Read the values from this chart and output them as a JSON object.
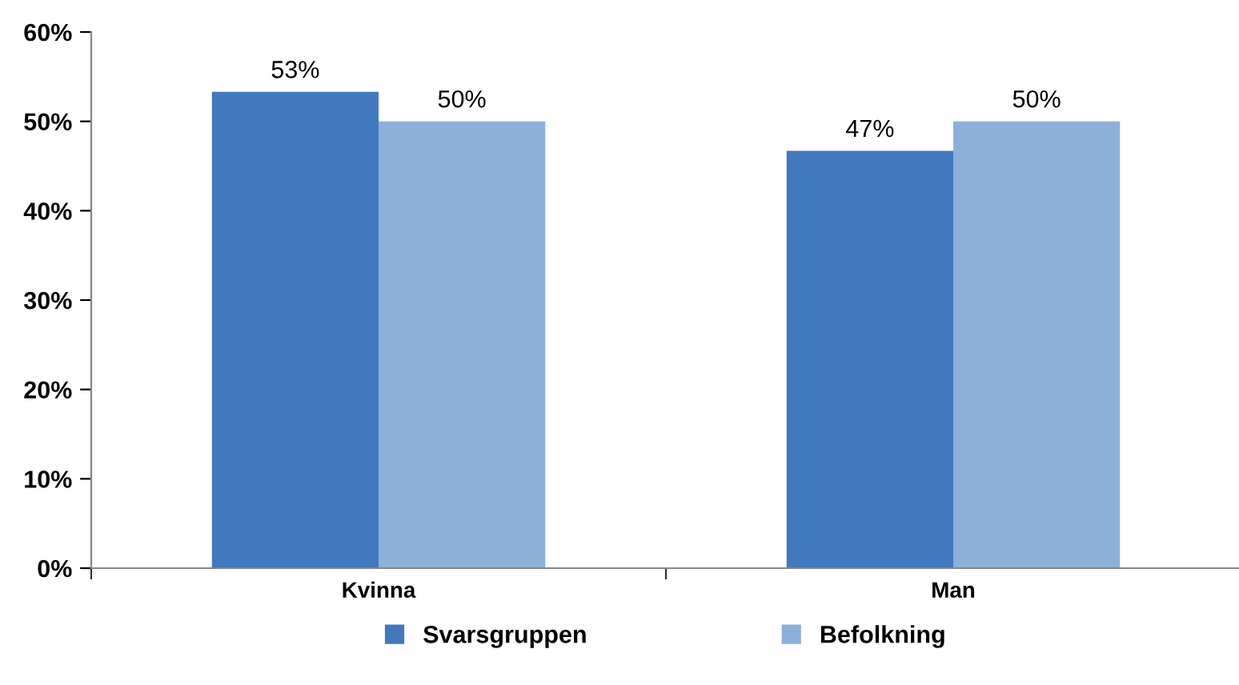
{
  "chart_data": {
    "type": "bar",
    "categories": [
      "Kvinna",
      "Man"
    ],
    "series": [
      {
        "name": "Svarsgruppen",
        "color": "#4178be",
        "values": [
          53.3,
          46.7
        ],
        "value_labels": [
          "53%",
          "47%"
        ]
      },
      {
        "name": "Befolkning",
        "color": "#8db0da",
        "values": [
          50,
          50
        ],
        "value_labels": [
          "50%",
          "50%"
        ]
      }
    ],
    "ylim": [
      0,
      60
    ],
    "yticks": [
      {
        "value": 0,
        "label": "0%"
      },
      {
        "value": 10,
        "label": "10%"
      },
      {
        "value": 20,
        "label": "20%"
      },
      {
        "value": 30,
        "label": "30%"
      },
      {
        "value": 40,
        "label": "40%"
      },
      {
        "value": 50,
        "label": "50%"
      },
      {
        "value": 60,
        "label": "60%"
      }
    ],
    "grid": false,
    "legend": "bottom"
  }
}
